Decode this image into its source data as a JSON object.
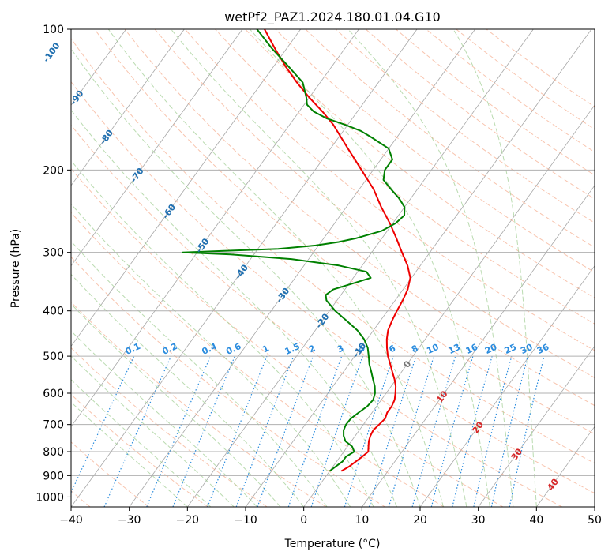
{
  "chart_data": {
    "type": "line",
    "title": "wetPf2_PAZ1.2024.180.01.04.G10",
    "xlabel": "Temperature (°C)",
    "ylabel": "Pressure (hPa)",
    "xlim": [
      -40,
      50
    ],
    "ylim": [
      1050,
      100
    ],
    "y_scale": "log",
    "grid": true,
    "x_ticks": [
      -40,
      -30,
      -20,
      -10,
      0,
      10,
      20,
      30,
      40,
      50
    ],
    "x_tick_labels": [
      "−40",
      "−30",
      "−20",
      "−10",
      "0",
      "10",
      "20",
      "30",
      "40",
      "50"
    ],
    "y_ticks": [
      100,
      200,
      300,
      400,
      500,
      600,
      700,
      800,
      900,
      1000
    ],
    "y_tick_labels": [
      "100",
      "200",
      "300",
      "400",
      "500",
      "600",
      "700",
      "800",
      "900",
      "1000"
    ],
    "colors": {
      "temperature": "#ee0000",
      "dewpoint": "#008000",
      "isotherm": "#8a8a8a",
      "dry_adiabat": "#f4a582",
      "moist_adiabat": "#9ccc8e",
      "mixing_ratio": "#2b8cde",
      "isotherm_label_neg": "#1f6fb0",
      "isotherm_label_pos": "#d62728"
    },
    "series": [
      {
        "role": "temperature",
        "points": [
          [
            880,
            2.0
          ],
          [
            860,
            2.8
          ],
          [
            840,
            3.3
          ],
          [
            820,
            3.8
          ],
          [
            800,
            4.2
          ],
          [
            780,
            3.6
          ],
          [
            760,
            3.0
          ],
          [
            740,
            2.6
          ],
          [
            720,
            2.4
          ],
          [
            700,
            2.7
          ],
          [
            680,
            3.0
          ],
          [
            660,
            2.6
          ],
          [
            640,
            2.6
          ],
          [
            620,
            2.3
          ],
          [
            600,
            1.6
          ],
          [
            580,
            0.8
          ],
          [
            560,
            -0.3
          ],
          [
            540,
            -1.6
          ],
          [
            520,
            -2.9
          ],
          [
            500,
            -4.3
          ],
          [
            480,
            -5.5
          ],
          [
            460,
            -6.6
          ],
          [
            440,
            -7.5
          ],
          [
            420,
            -8.0
          ],
          [
            400,
            -8.4
          ],
          [
            380,
            -8.7
          ],
          [
            360,
            -9.2
          ],
          [
            340,
            -10.2
          ],
          [
            320,
            -12.2
          ],
          [
            300,
            -14.8
          ],
          [
            280,
            -17.5
          ],
          [
            260,
            -20.5
          ],
          [
            240,
            -24.0
          ],
          [
            220,
            -27.5
          ],
          [
            200,
            -32.0
          ],
          [
            180,
            -37.0
          ],
          [
            160,
            -42.5
          ],
          [
            150,
            -46.0
          ],
          [
            140,
            -50.0
          ],
          [
            130,
            -54.0
          ],
          [
            120,
            -58.0
          ],
          [
            110,
            -62.0
          ],
          [
            100,
            -66.2
          ]
        ]
      },
      {
        "role": "dewpoint",
        "points": [
          [
            880,
            0.0
          ],
          [
            860,
            0.5
          ],
          [
            840,
            1.0
          ],
          [
            820,
            1.0
          ],
          [
            800,
            1.8
          ],
          [
            780,
            0.8
          ],
          [
            760,
            -1.0
          ],
          [
            740,
            -2.0
          ],
          [
            720,
            -2.7
          ],
          [
            700,
            -3.0
          ],
          [
            680,
            -2.9
          ],
          [
            660,
            -2.3
          ],
          [
            640,
            -1.6
          ],
          [
            620,
            -1.4
          ],
          [
            600,
            -1.9
          ],
          [
            580,
            -2.8
          ],
          [
            560,
            -4.0
          ],
          [
            540,
            -5.2
          ],
          [
            520,
            -6.5
          ],
          [
            500,
            -7.6
          ],
          [
            480,
            -8.8
          ],
          [
            460,
            -10.5
          ],
          [
            440,
            -12.8
          ],
          [
            420,
            -15.8
          ],
          [
            400,
            -19.0
          ],
          [
            380,
            -21.8
          ],
          [
            370,
            -22.6
          ],
          [
            360,
            -22.0
          ],
          [
            350,
            -19.5
          ],
          [
            340,
            -17.0
          ],
          [
            330,
            -18.5
          ],
          [
            320,
            -24.0
          ],
          [
            310,
            -33.0
          ],
          [
            303,
            -44.0
          ],
          [
            300,
            -52.5
          ],
          [
            298,
            -46.0
          ],
          [
            295,
            -36.5
          ],
          [
            290,
            -30.5
          ],
          [
            285,
            -27.0
          ],
          [
            280,
            -24.5
          ],
          [
            270,
            -21.0
          ],
          [
            260,
            -19.5
          ],
          [
            250,
            -19.0
          ],
          [
            240,
            -20.0
          ],
          [
            230,
            -22.0
          ],
          [
            220,
            -24.5
          ],
          [
            210,
            -27.0
          ],
          [
            200,
            -28.0
          ],
          [
            190,
            -28.0
          ],
          [
            180,
            -30.0
          ],
          [
            170,
            -34.5
          ],
          [
            165,
            -37.0
          ],
          [
            160,
            -40.5
          ],
          [
            155,
            -44.5
          ],
          [
            150,
            -47.5
          ],
          [
            145,
            -49.5
          ],
          [
            140,
            -50.5
          ],
          [
            130,
            -53.0
          ],
          [
            120,
            -57.5
          ],
          [
            110,
            -62.5
          ],
          [
            100,
            -67.5
          ]
        ]
      }
    ],
    "isotherm_labels": [
      "-100",
      "-90",
      "-80",
      "-70",
      "-60",
      "-50",
      "-40",
      "-30",
      "-20",
      "-10",
      "0",
      "10",
      "20",
      "30",
      "40"
    ],
    "mixing_ratio_labels": [
      "0.1",
      "0.2",
      "0.4",
      "0.6",
      "1",
      "1.5",
      "2",
      "3",
      "4",
      "6",
      "8",
      "10",
      "13",
      "16",
      "20",
      "25",
      "30",
      "36"
    ]
  }
}
